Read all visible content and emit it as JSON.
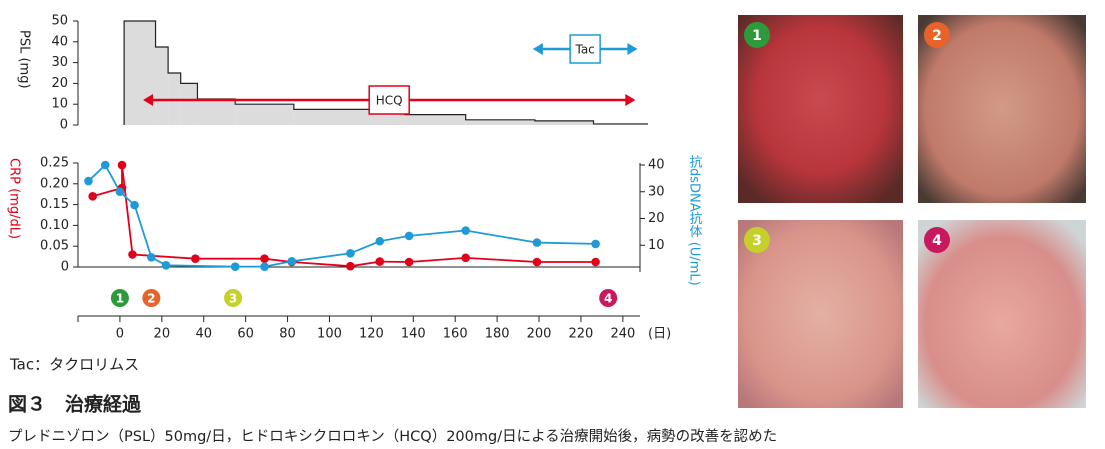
{
  "chart_data": [
    {
      "type": "step-area",
      "ylabel": "PSL (mg)",
      "color": "#dcdcdc",
      "x": [
        2,
        17,
        23,
        29,
        37,
        55,
        83,
        136,
        165,
        198,
        226
      ],
      "values": [
        50,
        37.5,
        25,
        20,
        12.5,
        10,
        7.5,
        5,
        2.5,
        2,
        0.5
      ],
      "xlim": [
        -20,
        252
      ],
      "ylim": [
        0,
        50
      ],
      "yticks": [
        0,
        10,
        20,
        30,
        40,
        50
      ],
      "ranges": [
        {
          "label": "HCQ",
          "start": 12,
          "end": 245,
          "color": "#e2001a"
        },
        {
          "label": "Tac",
          "start": 198,
          "end": 246,
          "color": "#1e9bd7"
        }
      ]
    },
    {
      "type": "line",
      "series": [
        {
          "name": "CRP (mg/dL)",
          "color": "#e2001a",
          "x": [
            -13,
            1,
            1,
            6,
            36,
            69,
            82,
            110,
            124,
            138,
            165,
            199,
            227
          ],
          "values": [
            0.17,
            0.19,
            0.245,
            0.03,
            0.02,
            0.02,
            0.012,
            0.002,
            0.013,
            0.012,
            0.022,
            0.012,
            0.012
          ]
        },
        {
          "name": "抗dsDNA抗体 (U/mL)",
          "color": "#1e9bd7",
          "axis": "y2",
          "x": [
            -15,
            -7,
            0,
            7,
            15,
            22,
            55,
            69,
            82,
            110,
            124,
            138,
            165,
            199,
            227
          ],
          "values": [
            34,
            40,
            30,
            25,
            5.5,
            2.5,
            2,
            2,
            4,
            7,
            11.5,
            13.5,
            15.5,
            11,
            10.5
          ]
        }
      ],
      "xlim": [
        -20,
        252
      ],
      "ylim": [
        0,
        0.25
      ],
      "yticks": [
        0,
        0.05,
        {
          "value": 0.1,
          "label": "0.10"
        },
        0.15,
        {
          "value": 0.2,
          "label": "0.20"
        },
        0.25
      ],
      "y2lim": [
        0,
        40
      ],
      "y2ticks": [
        10,
        20,
        30,
        40
      ]
    },
    {
      "type": "timeline",
      "xlim": [
        -20,
        252
      ],
      "xlabel": "(日)",
      "xticks": [
        0,
        20,
        40,
        60,
        80,
        100,
        120,
        140,
        160,
        180,
        200,
        220,
        240
      ],
      "events": [
        {
          "label": "1",
          "x": 0,
          "color": "#2e9a3c"
        },
        {
          "label": "2",
          "x": 15,
          "color": "#e8632a"
        },
        {
          "label": "3",
          "x": 54,
          "color": "#c5d02a"
        },
        {
          "label": "4",
          "x": 233,
          "color": "#c8185e"
        }
      ]
    }
  ],
  "photos": [
    {
      "label": "1",
      "color": "#2e9a3c"
    },
    {
      "label": "2",
      "color": "#e8632a"
    },
    {
      "label": "3",
      "color": "#c5d02a"
    },
    {
      "label": "4",
      "color": "#c8185e"
    }
  ],
  "abbreviation": "Tac：タクロリムス",
  "figure_title": "図３　治療経過",
  "caption": "プレドニゾロン（PSL）50mg/日，ヒドロキシクロロキン（HCQ）200mg/日による治療開始後，病勢の改善を認めた"
}
